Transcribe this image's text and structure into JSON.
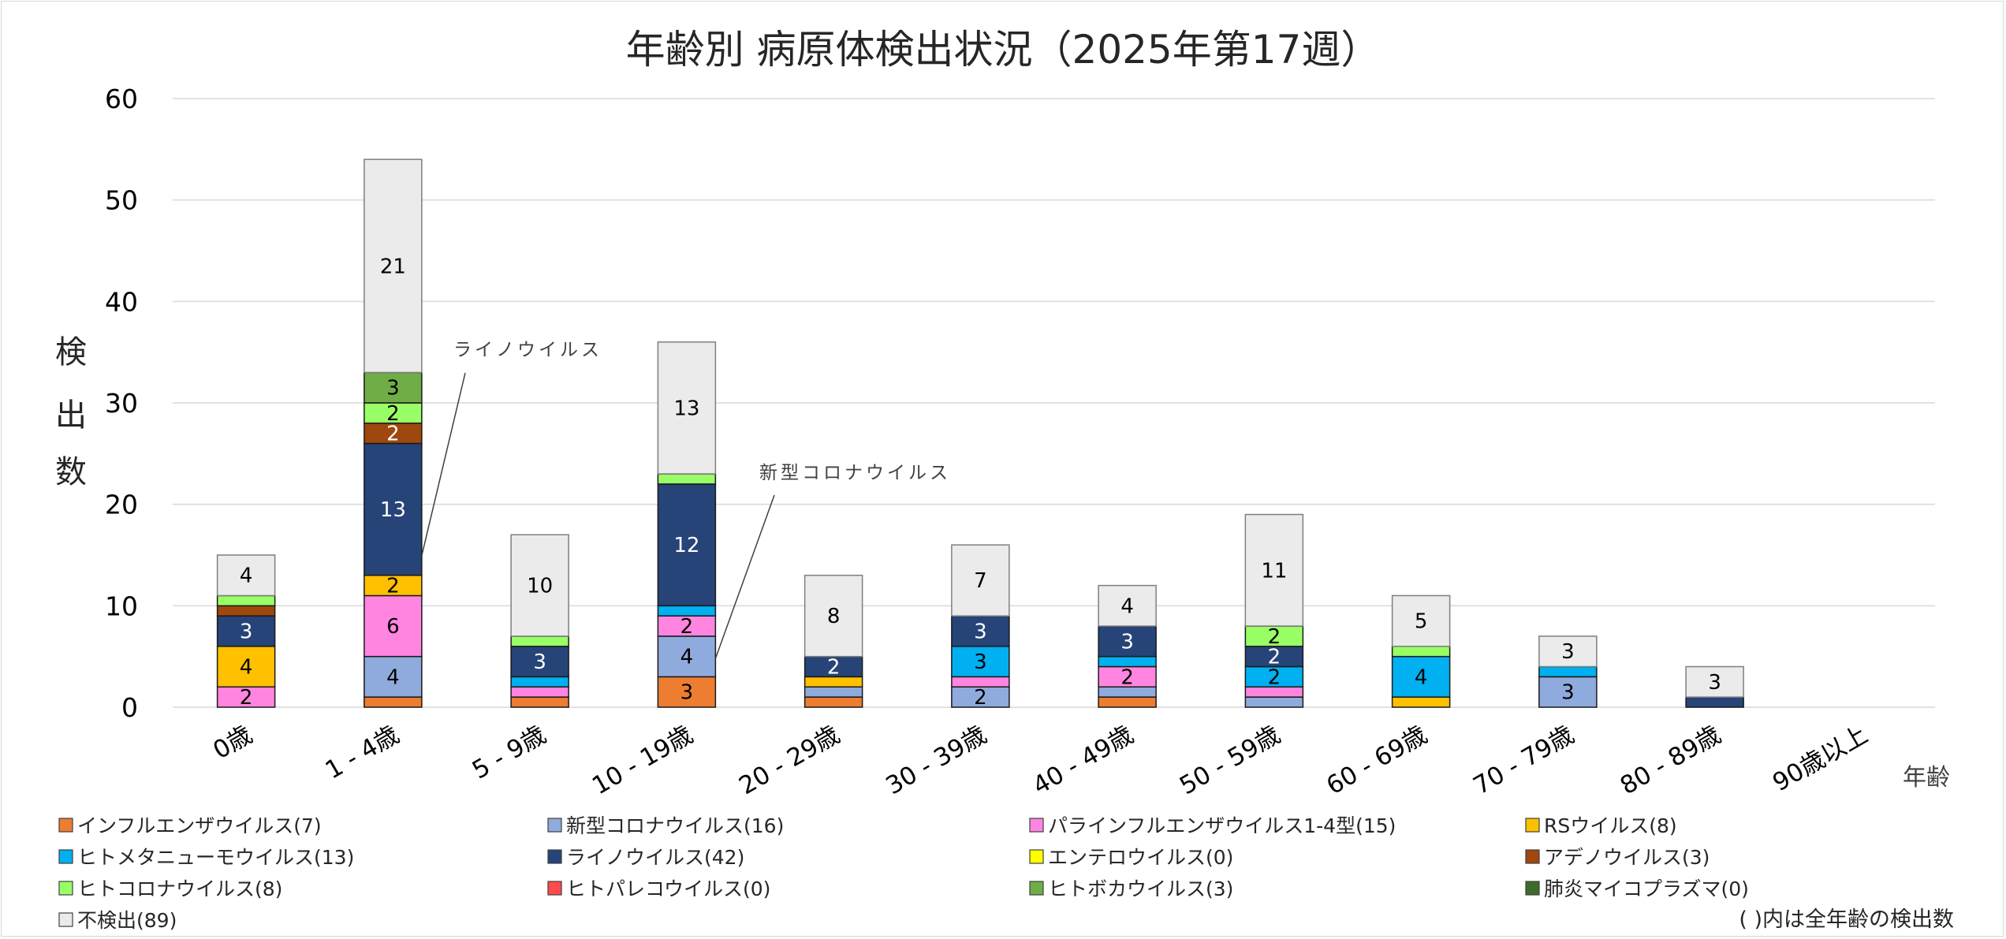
{
  "chart_data": {
    "type": "bar",
    "stacked": true,
    "title": "年齢別 病原体検出状況（2025年第17週）",
    "xlabel": "年齢",
    "ylabel": "検出数",
    "ylim": [
      0,
      60
    ],
    "yticks": [
      0,
      10,
      20,
      30,
      40,
      50,
      60
    ],
    "grid": true,
    "legend_position": "bottom",
    "categories": [
      "0歳",
      "1 - 4歳",
      "5 - 9歳",
      "10 - 19歳",
      "20 - 29歳",
      "30 - 39歳",
      "40 - 49歳",
      "50 - 59歳",
      "60 - 69歳",
      "70 - 79歳",
      "80 - 89歳",
      "90歳以上"
    ],
    "series": [
      {
        "name": "インフルエンザウイルス",
        "total": 7,
        "color": "#ED7D31",
        "label_color": "#000000",
        "values": [
          0,
          1,
          1,
          3,
          1,
          0,
          1,
          0,
          0,
          0,
          0,
          0
        ]
      },
      {
        "name": "新型コロナウイルス",
        "total": 16,
        "color": "#8FAADC",
        "label_color": "#000000",
        "values": [
          0,
          4,
          0,
          4,
          1,
          2,
          1,
          1,
          0,
          3,
          0,
          0
        ]
      },
      {
        "name": "パラインフルエンザウイルス1-4型",
        "total": 15,
        "color": "#FF85E0",
        "label_color": "#000000",
        "values": [
          2,
          6,
          1,
          2,
          0,
          1,
          2,
          1,
          0,
          0,
          0,
          0
        ]
      },
      {
        "name": "RSウイルス",
        "total": 8,
        "color": "#FFC000",
        "label_color": "#000000",
        "values": [
          4,
          2,
          0,
          0,
          1,
          0,
          0,
          0,
          1,
          0,
          0,
          0
        ]
      },
      {
        "name": "ヒトメタニューモウイルス",
        "total": 13,
        "color": "#00B0F0",
        "label_color": "#000000",
        "values": [
          0,
          0,
          1,
          1,
          0,
          3,
          1,
          2,
          4,
          1,
          0,
          0
        ]
      },
      {
        "name": "ライノウイルス",
        "total": 42,
        "color": "#264478",
        "label_color": "#FFFFFF",
        "values": [
          3,
          13,
          3,
          12,
          2,
          3,
          3,
          2,
          0,
          0,
          1,
          0
        ]
      },
      {
        "name": "エンテロウイルス",
        "total": 0,
        "color": "#FFFF00",
        "label_color": "#000000",
        "values": [
          0,
          0,
          0,
          0,
          0,
          0,
          0,
          0,
          0,
          0,
          0,
          0
        ]
      },
      {
        "name": "アデノウイルス",
        "total": 3,
        "color": "#9E480E",
        "label_color": "#FFFFFF",
        "values": [
          1,
          2,
          0,
          0,
          0,
          0,
          0,
          0,
          0,
          0,
          0,
          0
        ]
      },
      {
        "name": "ヒトコロナウイルス",
        "total": 8,
        "color": "#99FF66",
        "label_color": "#000000",
        "values": [
          1,
          2,
          1,
          1,
          0,
          0,
          0,
          2,
          1,
          0,
          0,
          0
        ]
      },
      {
        "name": "ヒトパレコウイルス",
        "total": 0,
        "color": "#FF4B4B",
        "label_color": "#000000",
        "values": [
          0,
          0,
          0,
          0,
          0,
          0,
          0,
          0,
          0,
          0,
          0,
          0
        ]
      },
      {
        "name": "ヒトボカウイルス",
        "total": 3,
        "color": "#70AD47",
        "label_color": "#000000",
        "values": [
          0,
          3,
          0,
          0,
          0,
          0,
          0,
          0,
          0,
          0,
          0,
          0
        ]
      },
      {
        "name": "肺炎マイコプラズマ",
        "total": 0,
        "color": "#3D6B2A",
        "label_color": "#FFFFFF",
        "values": [
          0,
          0,
          0,
          0,
          0,
          0,
          0,
          0,
          0,
          0,
          0,
          0
        ]
      },
      {
        "name": "不検出",
        "total": 89,
        "color": "#EBEBEB",
        "label_color": "#000000",
        "values": [
          4,
          21,
          10,
          13,
          8,
          7,
          4,
          11,
          5,
          3,
          3,
          0
        ]
      }
    ],
    "annotations": [
      {
        "text": "ライノウイルス",
        "category": "1 - 4歳",
        "series": "ライノウイルス"
      },
      {
        "text": "新型コロナウイルス",
        "category": "10 - 19歳",
        "series": "新型コロナウイルス"
      }
    ],
    "legend_entries": [
      "インフルエンザウイルス(7)",
      "新型コロナウイルス(16)",
      "パラインフルエンザウイルス1-4型(15)",
      "RSウイルス(8)",
      "ヒトメタニューモウイルス(13)",
      "ライノウイルス(42)",
      "エンテロウイルス(0)",
      "アデノウイルス(3)",
      "ヒトコロナウイルス(8)",
      "ヒトパレコウイルス(0)",
      "ヒトボカウイルス(3)",
      "肺炎マイコプラズマ(0)",
      "不検出(89)"
    ],
    "note": "( )内は全年齢の検出数"
  }
}
